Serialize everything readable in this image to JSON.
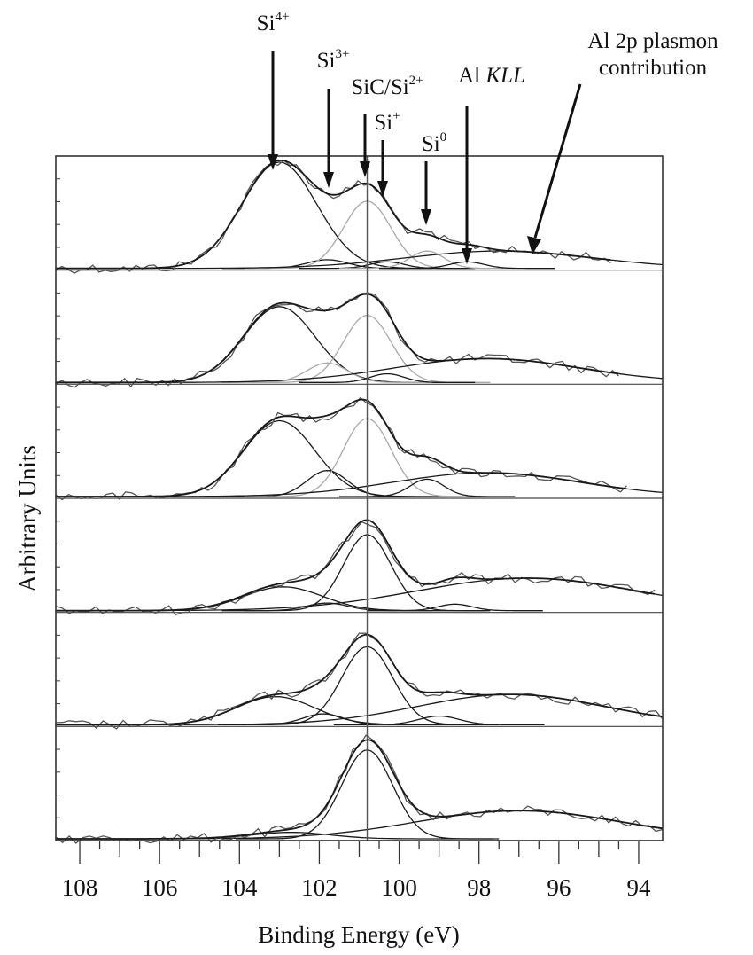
{
  "chart_data": {
    "type": "line",
    "title": "",
    "xlabel": "Binding Energy (eV)",
    "ylabel": "Arbitrary Units",
    "xlim": [
      108.6,
      93.4
    ],
    "x_reversed": true,
    "xticks_major": [
      108,
      106,
      104,
      102,
      100,
      98,
      96,
      94
    ],
    "xtick_labels": [
      "108",
      "106",
      "104",
      "102",
      "100",
      "98",
      "96",
      "94"
    ],
    "reference_line_x": 100.8,
    "colors": {
      "data": "#555555",
      "fit_dark": "#1a1a1a",
      "fit_light": "#a8a8a8",
      "frame": "#333333"
    },
    "annotations": [
      {
        "base": "Si",
        "sup": "4+",
        "x": 103.0
      },
      {
        "base": "Si",
        "sup": "3+",
        "x": 101.8
      },
      {
        "base": "SiC/Si",
        "sup": "2+",
        "x": 100.8
      },
      {
        "base": "Si",
        "sup": "+",
        "x": 100.4
      },
      {
        "base": "Si",
        "sup": "0",
        "x": 99.3
      },
      {
        "base": "Al",
        "italic": "KLL",
        "x": 98.3
      },
      {
        "lines": [
          "Al 2p plasmon",
          "contribution"
        ],
        "x": 96.8
      }
    ],
    "panels": [
      {
        "comment": "top spectrum",
        "peaks": [
          {
            "label": "Si4+",
            "center": 103.0,
            "height": 0.98,
            "fwhm": 2.2,
            "tone": "dark"
          },
          {
            "label": "Si3+",
            "center": 101.8,
            "height": 0.08,
            "fwhm": 1.2,
            "tone": "dark"
          },
          {
            "label": "SiC/Si2+",
            "center": 100.8,
            "height": 0.62,
            "fwhm": 1.4,
            "tone": "light"
          },
          {
            "label": "Si+",
            "center": 100.3,
            "height": 0.06,
            "fwhm": 1.0,
            "tone": "dark"
          },
          {
            "label": "Si0",
            "center": 99.3,
            "height": 0.16,
            "fwhm": 1.0,
            "tone": "light"
          },
          {
            "label": "Al KLL",
            "center": 98.3,
            "height": 0.06,
            "fwhm": 1.0,
            "tone": "dark"
          },
          {
            "label": "Al 2p plasmon",
            "center": 97.5,
            "height": 0.16,
            "fwhm": 5.5,
            "tone": "dark"
          }
        ],
        "data_x_range": [
          108.6,
          94.7
        ]
      },
      {
        "comment": "second spectrum",
        "peaks": [
          {
            "label": "Si4+",
            "center": 103.0,
            "height": 0.7,
            "fwhm": 2.1,
            "tone": "dark"
          },
          {
            "label": "Si3+",
            "center": 101.8,
            "height": 0.18,
            "fwhm": 1.2,
            "tone": "light"
          },
          {
            "label": "SiC/Si2+",
            "center": 100.8,
            "height": 0.62,
            "fwhm": 1.4,
            "tone": "light"
          },
          {
            "label": "Si+",
            "center": 100.3,
            "height": 0.08,
            "fwhm": 1.0,
            "tone": "dark"
          },
          {
            "label": "Al 2p plasmon",
            "center": 97.8,
            "height": 0.22,
            "fwhm": 5.5,
            "tone": "dark"
          }
        ],
        "data_x_range": [
          108.6,
          94.5
        ]
      },
      {
        "comment": "third spectrum",
        "peaks": [
          {
            "label": "Si4+",
            "center": 103.0,
            "height": 0.7,
            "fwhm": 2.1,
            "tone": "dark"
          },
          {
            "label": "Si3+",
            "center": 101.8,
            "height": 0.24,
            "fwhm": 1.2,
            "tone": "dark"
          },
          {
            "label": "SiC/Si2+",
            "center": 100.8,
            "height": 0.72,
            "fwhm": 1.4,
            "tone": "light"
          },
          {
            "label": "Si0",
            "center": 99.3,
            "height": 0.16,
            "fwhm": 1.0,
            "tone": "dark"
          },
          {
            "label": "Al 2p plasmon",
            "center": 97.8,
            "height": 0.22,
            "fwhm": 5.5,
            "tone": "dark"
          }
        ],
        "data_x_range": [
          108.6,
          94.3
        ]
      },
      {
        "comment": "fourth spectrum",
        "peaks": [
          {
            "label": "Si4+",
            "center": 102.9,
            "height": 0.22,
            "fwhm": 2.3,
            "tone": "dark"
          },
          {
            "label": "Si3+",
            "center": 101.8,
            "height": 0.07,
            "fwhm": 1.2,
            "tone": "dark"
          },
          {
            "label": "SiC/Si2+",
            "center": 100.8,
            "height": 0.7,
            "fwhm": 1.4,
            "tone": "dark"
          },
          {
            "label": "Si0",
            "center": 98.6,
            "height": 0.06,
            "fwhm": 1.0,
            "tone": "dark"
          },
          {
            "label": "Al 2p plasmon",
            "center": 96.8,
            "height": 0.3,
            "fwhm": 6.5,
            "tone": "dark"
          }
        ],
        "data_x_range": [
          108.6,
          93.6
        ]
      },
      {
        "comment": "fifth spectrum",
        "peaks": [
          {
            "label": "Si4+",
            "center": 103.1,
            "height": 0.26,
            "fwhm": 2.3,
            "tone": "dark"
          },
          {
            "label": "Si3+",
            "center": 101.9,
            "height": 0.1,
            "fwhm": 1.2,
            "tone": "dark"
          },
          {
            "label": "SiC/Si2+",
            "center": 100.8,
            "height": 0.72,
            "fwhm": 1.5,
            "tone": "dark"
          },
          {
            "label": "Al KLL",
            "center": 99.0,
            "height": 0.08,
            "fwhm": 1.2,
            "tone": "dark"
          },
          {
            "label": "Al 2p plasmon",
            "center": 97.2,
            "height": 0.28,
            "fwhm": 5.5,
            "tone": "dark"
          }
        ],
        "data_x_range": [
          108.6,
          93.4
        ]
      },
      {
        "comment": "bottom spectrum",
        "peaks": [
          {
            "label": "Si4+",
            "center": 102.7,
            "height": 0.06,
            "fwhm": 2.3,
            "tone": "dark"
          },
          {
            "label": "SiC/Si2+",
            "center": 100.8,
            "height": 0.82,
            "fwhm": 1.5,
            "tone": "dark"
          },
          {
            "label": "Al 2p plasmon",
            "center": 97.0,
            "height": 0.26,
            "fwhm": 6.0,
            "tone": "dark"
          }
        ],
        "data_x_range": [
          108.6,
          93.4
        ]
      }
    ]
  }
}
